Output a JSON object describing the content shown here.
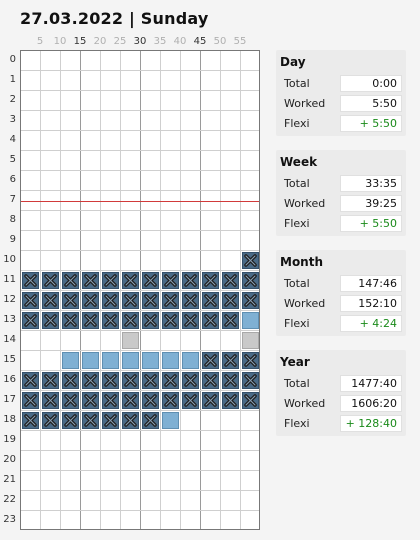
{
  "header": {
    "title": "27.03.2022 | Sunday"
  },
  "minute_labels": [
    "5",
    "10",
    "15",
    "20",
    "25",
    "30",
    "35",
    "40",
    "45",
    "50",
    "55"
  ],
  "hour_labels": [
    "0",
    "1",
    "2",
    "3",
    "4",
    "5",
    "6",
    "7",
    "8",
    "9",
    "10",
    "11",
    "12",
    "13",
    "14",
    "15",
    "16",
    "17",
    "18",
    "19",
    "20",
    "21",
    "22",
    "23"
  ],
  "timeline": {
    "current_time_hour_line": 8,
    "colors": {
      "worked": "#7fb0d3",
      "gray": "#c9c9c9",
      "cross": "#4a6a86",
      "now_line": "#d13a3a"
    },
    "rows": [
      {
        "hour": 10,
        "blocks": [
          {
            "slot": 11,
            "type": "x"
          }
        ]
      },
      {
        "hour": 11,
        "blocks": [
          {
            "slot": 0,
            "type": "x"
          },
          {
            "slot": 1,
            "type": "x"
          },
          {
            "slot": 2,
            "type": "x"
          },
          {
            "slot": 3,
            "type": "x"
          },
          {
            "slot": 4,
            "type": "x"
          },
          {
            "slot": 5,
            "type": "x"
          },
          {
            "slot": 6,
            "type": "x"
          },
          {
            "slot": 7,
            "type": "x"
          },
          {
            "slot": 8,
            "type": "x"
          },
          {
            "slot": 9,
            "type": "x"
          },
          {
            "slot": 10,
            "type": "x"
          },
          {
            "slot": 11,
            "type": "x"
          }
        ]
      },
      {
        "hour": 12,
        "blocks": [
          {
            "slot": 0,
            "type": "x"
          },
          {
            "slot": 1,
            "type": "x"
          },
          {
            "slot": 2,
            "type": "x"
          },
          {
            "slot": 3,
            "type": "x"
          },
          {
            "slot": 4,
            "type": "x"
          },
          {
            "slot": 5,
            "type": "x"
          },
          {
            "slot": 6,
            "type": "x"
          },
          {
            "slot": 7,
            "type": "x"
          },
          {
            "slot": 8,
            "type": "x"
          },
          {
            "slot": 9,
            "type": "x"
          },
          {
            "slot": 10,
            "type": "x"
          },
          {
            "slot": 11,
            "type": "x"
          }
        ]
      },
      {
        "hour": 13,
        "blocks": [
          {
            "slot": 0,
            "type": "x"
          },
          {
            "slot": 1,
            "type": "x"
          },
          {
            "slot": 2,
            "type": "x"
          },
          {
            "slot": 3,
            "type": "x"
          },
          {
            "slot": 4,
            "type": "x"
          },
          {
            "slot": 5,
            "type": "x"
          },
          {
            "slot": 6,
            "type": "x"
          },
          {
            "slot": 7,
            "type": "x"
          },
          {
            "slot": 8,
            "type": "x"
          },
          {
            "slot": 9,
            "type": "x"
          },
          {
            "slot": 10,
            "type": "x"
          },
          {
            "slot": 11,
            "type": "worked"
          }
        ]
      },
      {
        "hour": 14,
        "blocks": [
          {
            "slot": 5,
            "type": "gray"
          },
          {
            "slot": 11,
            "type": "gray"
          }
        ]
      },
      {
        "hour": 15,
        "blocks": [
          {
            "slot": 2,
            "type": "worked"
          },
          {
            "slot": 3,
            "type": "worked"
          },
          {
            "slot": 4,
            "type": "worked"
          },
          {
            "slot": 5,
            "type": "worked"
          },
          {
            "slot": 6,
            "type": "worked"
          },
          {
            "slot": 7,
            "type": "worked"
          },
          {
            "slot": 8,
            "type": "worked"
          },
          {
            "slot": 9,
            "type": "x"
          },
          {
            "slot": 10,
            "type": "x"
          },
          {
            "slot": 11,
            "type": "x"
          }
        ]
      },
      {
        "hour": 16,
        "blocks": [
          {
            "slot": 0,
            "type": "x"
          },
          {
            "slot": 1,
            "type": "x"
          },
          {
            "slot": 2,
            "type": "x"
          },
          {
            "slot": 3,
            "type": "x"
          },
          {
            "slot": 4,
            "type": "x"
          },
          {
            "slot": 5,
            "type": "x"
          },
          {
            "slot": 6,
            "type": "x"
          },
          {
            "slot": 7,
            "type": "x"
          },
          {
            "slot": 8,
            "type": "x"
          },
          {
            "slot": 9,
            "type": "x"
          },
          {
            "slot": 10,
            "type": "x"
          },
          {
            "slot": 11,
            "type": "x"
          }
        ]
      },
      {
        "hour": 17,
        "blocks": [
          {
            "slot": 0,
            "type": "x"
          },
          {
            "slot": 1,
            "type": "x"
          },
          {
            "slot": 2,
            "type": "x"
          },
          {
            "slot": 3,
            "type": "x"
          },
          {
            "slot": 4,
            "type": "x"
          },
          {
            "slot": 5,
            "type": "x"
          },
          {
            "slot": 6,
            "type": "x"
          },
          {
            "slot": 7,
            "type": "x"
          },
          {
            "slot": 8,
            "type": "x"
          },
          {
            "slot": 9,
            "type": "x"
          },
          {
            "slot": 10,
            "type": "x"
          },
          {
            "slot": 11,
            "type": "x"
          }
        ]
      },
      {
        "hour": 18,
        "blocks": [
          {
            "slot": 0,
            "type": "x"
          },
          {
            "slot": 1,
            "type": "x"
          },
          {
            "slot": 2,
            "type": "x"
          },
          {
            "slot": 3,
            "type": "x"
          },
          {
            "slot": 4,
            "type": "x"
          },
          {
            "slot": 5,
            "type": "x"
          },
          {
            "slot": 6,
            "type": "x"
          },
          {
            "slot": 7,
            "type": "worked"
          }
        ]
      }
    ]
  },
  "panels": {
    "day": {
      "title": "Day",
      "total_label": "Total",
      "total": "0:00",
      "worked_label": "Worked",
      "worked": "5:50",
      "flexi_label": "Flexi",
      "flexi": "+ 5:50"
    },
    "week": {
      "title": "Week",
      "total_label": "Total",
      "total": "33:35",
      "worked_label": "Worked",
      "worked": "39:25",
      "flexi_label": "Flexi",
      "flexi": "+ 5:50"
    },
    "month": {
      "title": "Month",
      "total_label": "Total",
      "total": "147:46",
      "worked_label": "Worked",
      "worked": "152:10",
      "flexi_label": "Flexi",
      "flexi": "+ 4:24"
    },
    "year": {
      "title": "Year",
      "total_label": "Total",
      "total": "1477:40",
      "worked_label": "Worked",
      "worked": "1606:20",
      "flexi_label": "Flexi",
      "flexi": "+ 128:40"
    }
  }
}
